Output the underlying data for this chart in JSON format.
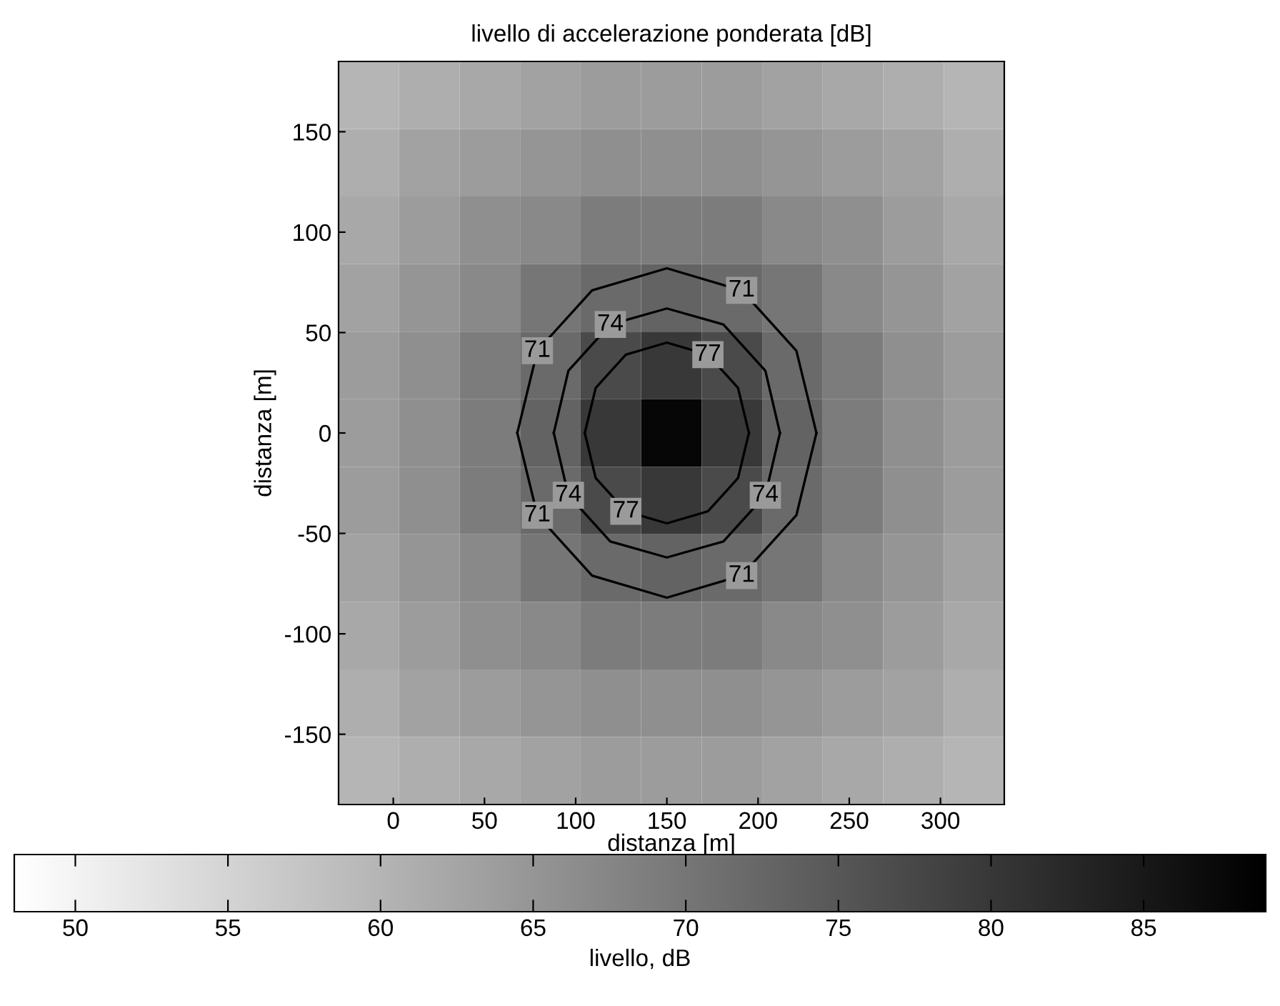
{
  "chart_data": {
    "type": "heatmap",
    "title": "livello di accelerazione ponderata [dB]",
    "xlabel": "distanza [m]",
    "ylabel": "distanza [m]",
    "clabel": "livello, dB",
    "xlim": [
      -30,
      335
    ],
    "ylim": [
      -185,
      185
    ],
    "xticks": [
      0,
      50,
      100,
      150,
      200,
      250,
      300
    ],
    "yticks": [
      -150,
      -100,
      -50,
      0,
      50,
      100,
      150
    ],
    "clim": [
      48,
      89
    ],
    "cticks": [
      50,
      55,
      60,
      65,
      70,
      75,
      80,
      85
    ],
    "grid": false,
    "cells": [
      [
        60,
        61,
        62,
        63,
        64,
        64,
        64,
        63,
        62,
        61,
        60
      ],
      [
        61,
        63,
        64,
        65,
        66,
        66,
        66,
        65,
        64,
        63,
        61
      ],
      [
        62,
        64,
        66,
        67,
        69,
        69,
        69,
        67,
        66,
        64,
        62
      ],
      [
        63,
        65,
        67,
        70,
        72,
        73,
        72,
        70,
        67,
        65,
        63
      ],
      [
        64,
        66,
        69,
        72,
        77,
        80,
        77,
        72,
        69,
        66,
        64
      ],
      [
        64,
        66,
        69,
        73,
        80,
        88,
        80,
        73,
        69,
        66,
        64
      ],
      [
        64,
        66,
        69,
        72,
        77,
        80,
        77,
        72,
        69,
        66,
        64
      ],
      [
        63,
        65,
        67,
        70,
        72,
        73,
        72,
        70,
        67,
        65,
        63
      ],
      [
        62,
        64,
        66,
        67,
        69,
        69,
        69,
        67,
        66,
        64,
        62
      ],
      [
        61,
        63,
        64,
        65,
        66,
        66,
        66,
        65,
        64,
        63,
        61
      ],
      [
        60,
        61,
        62,
        63,
        64,
        64,
        64,
        63,
        62,
        61,
        60
      ]
    ],
    "series": [
      {
        "type": "line",
        "color": "#000000",
        "x": [
          68,
          79,
          109,
          150,
          191,
          221,
          232
        ],
        "values": [
          0,
          41,
          71,
          82,
          71,
          41,
          0
        ]
      },
      {
        "type": "line",
        "color": "#000000",
        "x": [
          68,
          79,
          109,
          150,
          191,
          221,
          232
        ],
        "values": [
          0,
          -41,
          -71,
          -82,
          -71,
          -41,
          0
        ]
      },
      {
        "type": "line",
        "color": "#000000",
        "x": [
          88,
          96,
          119,
          150,
          181,
          204,
          212
        ],
        "values": [
          0,
          31,
          54,
          62,
          54,
          31,
          0
        ]
      },
      {
        "type": "line",
        "color": "#000000",
        "x": [
          88,
          96,
          119,
          150,
          181,
          204,
          212
        ],
        "values": [
          0,
          -31,
          -54,
          -62,
          -54,
          -31,
          0
        ]
      },
      {
        "type": "line",
        "color": "#000000",
        "x": [
          105,
          111,
          127.5,
          150,
          172.5,
          189,
          195
        ],
        "values": [
          0,
          22.5,
          39,
          45,
          39,
          22.5,
          0
        ]
      },
      {
        "type": "line",
        "color": "#000000",
        "x": [
          105,
          111,
          127.5,
          150,
          172.5,
          189,
          195
        ],
        "values": [
          0,
          -22.5,
          -39,
          -45,
          -39,
          -22.5,
          0
        ]
      }
    ],
    "annotations": [
      {
        "text": "71",
        "x": 79,
        "y": 41
      },
      {
        "text": "71",
        "x": 191,
        "y": 71
      },
      {
        "text": "71",
        "x": 79,
        "y": -41
      },
      {
        "text": "71",
        "x": 191,
        "y": -71
      },
      {
        "text": "74",
        "x": 119,
        "y": 54
      },
      {
        "text": "74",
        "x": 96,
        "y": -31
      },
      {
        "text": "74",
        "x": 204,
        "y": -31
      },
      {
        "text": "77",
        "x": 172.5,
        "y": 39
      },
      {
        "text": "77",
        "x": 127.5,
        "y": -39
      }
    ]
  }
}
